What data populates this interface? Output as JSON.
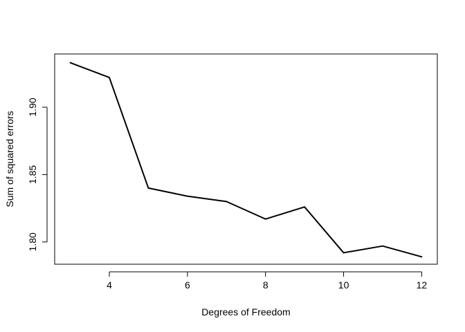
{
  "chart_data": {
    "type": "line",
    "title": "",
    "xlabel": "Degrees of Freedom",
    "ylabel": "Sum of squared errors",
    "xlim": [
      2.6,
      12.4
    ],
    "ylim": [
      1.7835,
      1.9395
    ],
    "x_ticks": [
      4,
      6,
      8,
      10,
      12
    ],
    "x_tick_labels": [
      "4",
      "6",
      "8",
      "10",
      "12"
    ],
    "y_ticks": [
      1.8,
      1.85,
      1.9
    ],
    "y_tick_labels": [
      "1.80",
      "1.85",
      "1.90"
    ],
    "grid": false,
    "line_color": "#000000",
    "series": [
      {
        "x": [
          3,
          4,
          5,
          6,
          7,
          8,
          9,
          10,
          11,
          12
        ],
        "values": [
          1.933,
          1.922,
          1.84,
          1.834,
          1.83,
          1.817,
          1.826,
          1.792,
          1.797,
          1.789
        ]
      }
    ]
  }
}
